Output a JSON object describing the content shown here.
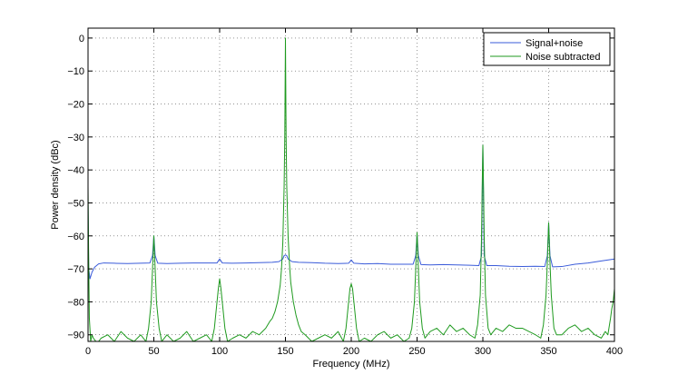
{
  "chart_data": {
    "type": "line",
    "title": "",
    "xlabel": "Frequency (MHz)",
    "ylabel": "Power density (dBc)",
    "xlim": [
      0,
      400
    ],
    "ylim": [
      -92,
      3
    ],
    "xticks": [
      0,
      50,
      100,
      150,
      200,
      250,
      300,
      350,
      400
    ],
    "yticks": [
      0,
      -10,
      -20,
      -30,
      -40,
      -50,
      -60,
      -70,
      -80,
      -90
    ],
    "xtick_labels": [
      "0",
      "50",
      "100",
      "150",
      "200",
      "250",
      "300",
      "350",
      "400"
    ],
    "ytick_labels": [
      "0",
      "−10",
      "−20",
      "−30",
      "−40",
      "−50",
      "−60",
      "−70",
      "−80",
      "−90"
    ],
    "grid": true,
    "legend_position": "top-right",
    "series": [
      {
        "name": "Signal+noise",
        "color": "#3a5bd9",
        "x": [
          0,
          0.5,
          1.5,
          3,
          5,
          8,
          12,
          20,
          30,
          40,
          47,
          49,
          50,
          51,
          53,
          60,
          70,
          80,
          90,
          98,
          100,
          102,
          110,
          120,
          130,
          140,
          145,
          148,
          149,
          150,
          151,
          152,
          155,
          160,
          170,
          180,
          190,
          198,
          200,
          202,
          210,
          220,
          230,
          240,
          247,
          249,
          250,
          251,
          253,
          260,
          270,
          280,
          290,
          297,
          299,
          300,
          301,
          303,
          310,
          320,
          330,
          340,
          347,
          349,
          350,
          351,
          353,
          360,
          370,
          380,
          390,
          400
        ],
        "y": [
          -50,
          -70,
          -73,
          -71,
          -69.5,
          -68.5,
          -68.2,
          -68.3,
          -68.4,
          -68.3,
          -68.2,
          -66,
          -60,
          -66,
          -68.3,
          -68.4,
          -68.3,
          -68.2,
          -68.2,
          -68.2,
          -67,
          -68.2,
          -68.3,
          -68.2,
          -68.1,
          -68.0,
          -67.8,
          -67.0,
          -66,
          -65.8,
          -66,
          -67.0,
          -67.8,
          -68.0,
          -68.1,
          -68.3,
          -68.4,
          -68.3,
          -67.3,
          -68.3,
          -68.5,
          -68.4,
          -68.6,
          -68.6,
          -68.6,
          -66,
          -59.5,
          -66,
          -68.7,
          -68.8,
          -68.7,
          -68.8,
          -68.9,
          -69.0,
          -66,
          -32.5,
          -66,
          -69.0,
          -69.0,
          -69.2,
          -69.3,
          -69.2,
          -69.3,
          -66,
          -56,
          -66,
          -69.4,
          -69.3,
          -68.6,
          -68.2,
          -67.6,
          -67.0
        ]
      },
      {
        "name": "Noise subtracted",
        "color": "#1f9a1f",
        "x": [
          0,
          0.5,
          1,
          2,
          3,
          4,
          6,
          8,
          10,
          15,
          20,
          25,
          30,
          35,
          40,
          44,
          46,
          48,
          49,
          49.5,
          50,
          50.5,
          51,
          52,
          54,
          56,
          60,
          65,
          70,
          75,
          80,
          85,
          90,
          94,
          96,
          98,
          99,
          100,
          101,
          102,
          104,
          106,
          110,
          115,
          120,
          125,
          130,
          135,
          138,
          140,
          142,
          144,
          146,
          147,
          148,
          149,
          149.5,
          150,
          150.5,
          151,
          152,
          153,
          154,
          156,
          158,
          160,
          162,
          165,
          170,
          175,
          180,
          185,
          190,
          194,
          196,
          198,
          199,
          200,
          201,
          202,
          204,
          206,
          210,
          215,
          220,
          225,
          230,
          235,
          240,
          244,
          246,
          248,
          249,
          249.5,
          250,
          250.5,
          251,
          252,
          254,
          256,
          260,
          265,
          270,
          275,
          280,
          285,
          290,
          294,
          296,
          298,
          299,
          299.5,
          300,
          300.5,
          301,
          302,
          304,
          306,
          310,
          315,
          320,
          325,
          330,
          335,
          340,
          344,
          346,
          348,
          349,
          349.5,
          350,
          350.5,
          351,
          352,
          354,
          356,
          360,
          365,
          370,
          375,
          380,
          385,
          390,
          393,
          395,
          397,
          398,
          399,
          400
        ],
        "y": [
          -45,
          -68,
          -85,
          -92,
          -90,
          -91,
          -92,
          -92,
          -91,
          -90,
          -92,
          -89,
          -91,
          -92,
          -90,
          -92,
          -88,
          -80,
          -70,
          -65,
          -60,
          -65,
          -70,
          -80,
          -88,
          -92,
          -90,
          -92,
          -91,
          -89,
          -92,
          -91,
          -90,
          -92,
          -88,
          -80,
          -76,
          -73,
          -76,
          -80,
          -88,
          -92,
          -91,
          -90,
          -91,
          -89,
          -90,
          -88,
          -86,
          -85,
          -83,
          -80,
          -75,
          -70,
          -62,
          -45,
          -30,
          0,
          -30,
          -45,
          -60,
          -68,
          -74,
          -80,
          -84,
          -87,
          -89,
          -90,
          -92,
          -91,
          -90,
          -91,
          -89,
          -92,
          -88,
          -80,
          -76,
          -74.5,
          -76,
          -80,
          -88,
          -92,
          -91,
          -92,
          -90,
          -89,
          -91,
          -90,
          -92,
          -91,
          -88,
          -80,
          -70,
          -64,
          -59,
          -64,
          -70,
          -80,
          -88,
          -91,
          -89,
          -88,
          -90,
          -87,
          -89,
          -88,
          -90,
          -91,
          -87,
          -78,
          -60,
          -45,
          -32.5,
          -45,
          -60,
          -78,
          -88,
          -90,
          -88,
          -89,
          -87,
          -88,
          -88,
          -89,
          -90,
          -91,
          -87,
          -78,
          -68,
          -62,
          -56,
          -62,
          -68,
          -78,
          -88,
          -90,
          -90,
          -88,
          -87,
          -89,
          -88,
          -90,
          -91,
          -89,
          -90,
          -85,
          -82,
          -80,
          -76
        ]
      }
    ]
  }
}
